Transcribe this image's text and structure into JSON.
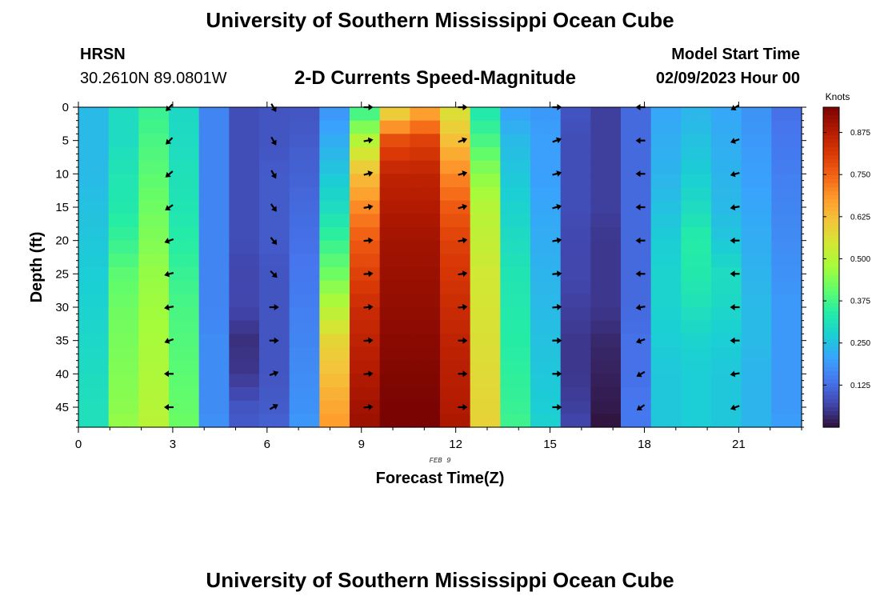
{
  "header": {
    "title": "University of Southern Mississippi Ocean Cube",
    "station": "HRSN",
    "coords": "30.2610N  89.0801W",
    "plot_title": "2-D Currents Speed-Magnitude",
    "model_label": "Model Start Time",
    "model_time": "02/09/2023 Hour 00"
  },
  "footer": {
    "title": "University of Southern Mississippi Ocean Cube"
  },
  "colors": {
    "scale": [
      "#30123b",
      "#4145ab",
      "#4675ed",
      "#39a2fc",
      "#1bcfd4",
      "#24eca6",
      "#61fc6c",
      "#a4fc3b",
      "#d1e834",
      "#f3c63a",
      "#fe9b2d",
      "#f36315",
      "#d93806",
      "#b11901",
      "#7a0402"
    ]
  },
  "chart_data": {
    "type": "heatmap",
    "title": "2-D Currents Speed-Magnitude",
    "xlabel": "Forecast Time(Z)",
    "ylabel": "Depth (ft)",
    "date_label": "FEB 9",
    "xlim": [
      0,
      23
    ],
    "ylim": [
      0,
      48
    ],
    "x_ticks": [
      0,
      3,
      6,
      9,
      12,
      15,
      18,
      21
    ],
    "y_ticks": [
      0,
      5,
      10,
      15,
      20,
      25,
      30,
      35,
      40,
      45
    ],
    "colorbar": {
      "label": "Knots",
      "range": [
        0.0,
        0.95
      ],
      "ticks": [
        "0.125",
        "0.250",
        "0.375",
        "0.500",
        "0.625",
        "0.750",
        "0.875"
      ]
    },
    "hours": [
      0,
      1,
      2,
      3,
      4,
      5,
      6,
      7,
      8,
      9,
      10,
      11,
      12,
      13,
      14,
      15,
      16,
      17,
      18,
      19,
      20,
      21,
      22,
      23
    ],
    "depth_levels": [
      0,
      5,
      10,
      15,
      20,
      25,
      30,
      35,
      40,
      45,
      48
    ],
    "speed_knots": [
      [
        0.24,
        0.3,
        0.36,
        0.29,
        0.16,
        0.08,
        0.09,
        0.09,
        0.18,
        0.35,
        0.55,
        0.64,
        0.55,
        0.32,
        0.2,
        0.19,
        0.09,
        0.06,
        0.12,
        0.21,
        0.23,
        0.21,
        0.18,
        0.13
      ],
      [
        0.24,
        0.3,
        0.38,
        0.3,
        0.16,
        0.08,
        0.09,
        0.1,
        0.22,
        0.5,
        0.78,
        0.8,
        0.62,
        0.38,
        0.24,
        0.2,
        0.08,
        0.06,
        0.12,
        0.22,
        0.25,
        0.22,
        0.19,
        0.14
      ],
      [
        0.24,
        0.32,
        0.4,
        0.31,
        0.16,
        0.08,
        0.1,
        0.11,
        0.26,
        0.62,
        0.86,
        0.86,
        0.7,
        0.45,
        0.26,
        0.2,
        0.08,
        0.06,
        0.12,
        0.23,
        0.27,
        0.23,
        0.2,
        0.15
      ],
      [
        0.25,
        0.33,
        0.42,
        0.32,
        0.16,
        0.08,
        0.1,
        0.12,
        0.3,
        0.7,
        0.88,
        0.88,
        0.76,
        0.5,
        0.28,
        0.21,
        0.08,
        0.06,
        0.12,
        0.25,
        0.3,
        0.24,
        0.21,
        0.16
      ],
      [
        0.26,
        0.36,
        0.44,
        0.34,
        0.16,
        0.08,
        0.1,
        0.13,
        0.36,
        0.76,
        0.9,
        0.9,
        0.8,
        0.52,
        0.3,
        0.22,
        0.07,
        0.05,
        0.12,
        0.27,
        0.34,
        0.26,
        0.22,
        0.17
      ],
      [
        0.27,
        0.4,
        0.46,
        0.36,
        0.16,
        0.07,
        0.09,
        0.14,
        0.42,
        0.8,
        0.91,
        0.91,
        0.82,
        0.54,
        0.32,
        0.23,
        0.07,
        0.05,
        0.12,
        0.28,
        0.33,
        0.3,
        0.23,
        0.18
      ],
      [
        0.28,
        0.42,
        0.47,
        0.38,
        0.16,
        0.07,
        0.09,
        0.15,
        0.5,
        0.84,
        0.92,
        0.92,
        0.84,
        0.55,
        0.33,
        0.24,
        0.06,
        0.05,
        0.12,
        0.28,
        0.31,
        0.29,
        0.24,
        0.19
      ],
      [
        0.29,
        0.43,
        0.48,
        0.39,
        0.17,
        0.04,
        0.09,
        0.16,
        0.58,
        0.86,
        0.93,
        0.93,
        0.86,
        0.56,
        0.34,
        0.25,
        0.05,
        0.03,
        0.13,
        0.27,
        0.28,
        0.27,
        0.24,
        0.19
      ],
      [
        0.3,
        0.44,
        0.49,
        0.4,
        0.17,
        0.05,
        0.09,
        0.17,
        0.62,
        0.88,
        0.94,
        0.94,
        0.87,
        0.57,
        0.35,
        0.26,
        0.05,
        0.02,
        0.13,
        0.26,
        0.27,
        0.26,
        0.23,
        0.19
      ],
      [
        0.31,
        0.45,
        0.5,
        0.41,
        0.17,
        0.09,
        0.1,
        0.18,
        0.66,
        0.9,
        0.95,
        0.95,
        0.88,
        0.58,
        0.36,
        0.27,
        0.06,
        0.01,
        0.14,
        0.26,
        0.27,
        0.26,
        0.23,
        0.19
      ],
      [
        0.31,
        0.46,
        0.51,
        0.42,
        0.18,
        0.1,
        0.11,
        0.19,
        0.68,
        0.91,
        0.95,
        0.95,
        0.89,
        0.59,
        0.37,
        0.28,
        0.07,
        0.0,
        0.14,
        0.26,
        0.27,
        0.26,
        0.23,
        0.2
      ]
    ],
    "arrow_hours": [
      2.9,
      6.2,
      9.2,
      12.2,
      15.2,
      17.9,
      20.9
    ],
    "arrow_depths": [
      0,
      5,
      10,
      15,
      20,
      25,
      30,
      35,
      40,
      45
    ],
    "arrow_directions_deg": [
      [
        225,
        300,
        0,
        0,
        0,
        180,
        210
      ],
      [
        225,
        300,
        10,
        20,
        20,
        180,
        200
      ],
      [
        220,
        300,
        15,
        15,
        15,
        180,
        195
      ],
      [
        215,
        305,
        10,
        15,
        15,
        180,
        190
      ],
      [
        200,
        310,
        5,
        10,
        10,
        180,
        180
      ],
      [
        195,
        315,
        5,
        10,
        5,
        180,
        180
      ],
      [
        190,
        0,
        5,
        5,
        5,
        190,
        180
      ],
      [
        200,
        0,
        5,
        0,
        0,
        200,
        180
      ],
      [
        180,
        20,
        5,
        0,
        0,
        210,
        190
      ],
      [
        180,
        30,
        5,
        0,
        0,
        215,
        200
      ]
    ]
  }
}
